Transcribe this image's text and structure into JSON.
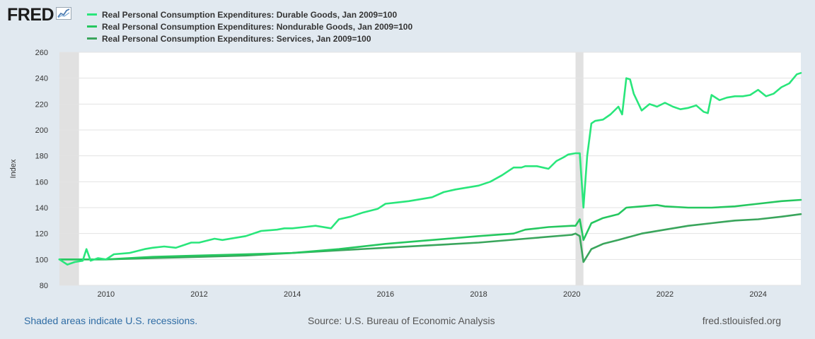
{
  "header": {
    "logo_text": "FRED",
    "logo_icon": "line-chart-icon"
  },
  "footer": {
    "recession_note": "Shaded areas indicate U.S. recessions.",
    "source": "Source: U.S. Bureau of Economic Analysis",
    "website": "fred.stlouisfed.org"
  },
  "chart_data": {
    "type": "line",
    "title": "",
    "xlabel": "",
    "ylabel": "Index",
    "ylim": [
      80,
      260
    ],
    "yticks": [
      80,
      100,
      120,
      140,
      160,
      180,
      200,
      220,
      240,
      260
    ],
    "xlim": [
      2009.0,
      2024.917
    ],
    "xticks": [
      2010,
      2012,
      2014,
      2016,
      2018,
      2020,
      2022,
      2024
    ],
    "grid": "horizontal",
    "recessions": [
      [
        2009.0,
        2009.42
      ],
      [
        2020.08,
        2020.25
      ]
    ],
    "recession_color": "#e1e1e1",
    "series": [
      {
        "name": "Real Personal Consumption Expenditures: Durable Goods, Jan 2009=100",
        "color": "#29e67b",
        "x": [
          2009.0,
          2009.17,
          2009.33,
          2009.5,
          2009.58,
          2009.67,
          2009.83,
          2010.0,
          2010.17,
          2010.5,
          2010.83,
          2011.0,
          2011.25,
          2011.5,
          2011.83,
          2012.0,
          2012.33,
          2012.5,
          2012.83,
          2013.0,
          2013.33,
          2013.67,
          2013.83,
          2014.0,
          2014.25,
          2014.5,
          2014.83,
          2015.0,
          2015.25,
          2015.5,
          2015.83,
          2016.0,
          2016.25,
          2016.5,
          2016.83,
          2017.0,
          2017.25,
          2017.5,
          2017.83,
          2018.0,
          2018.25,
          2018.5,
          2018.75,
          2018.92,
          2019.0,
          2019.25,
          2019.5,
          2019.67,
          2019.83,
          2019.92,
          2020.08,
          2020.17,
          2020.25,
          2020.33,
          2020.42,
          2020.5,
          2020.67,
          2020.83,
          2021.0,
          2021.08,
          2021.17,
          2021.25,
          2021.33,
          2021.5,
          2021.67,
          2021.83,
          2022.0,
          2022.17,
          2022.33,
          2022.5,
          2022.67,
          2022.83,
          2022.92,
          2023.0,
          2023.17,
          2023.33,
          2023.5,
          2023.67,
          2023.83,
          2024.0,
          2024.17,
          2024.33,
          2024.5,
          2024.67,
          2024.83,
          2024.917
        ],
        "values": [
          100,
          96,
          98,
          99,
          108,
          99,
          101,
          100,
          104,
          105,
          108,
          109,
          110,
          109,
          113,
          113,
          116,
          115,
          117,
          118,
          122,
          123,
          124,
          124,
          125,
          126,
          124,
          131,
          133,
          136,
          139,
          143,
          144,
          145,
          147,
          148,
          152,
          154,
          156,
          157,
          160,
          165,
          171,
          171,
          172,
          172,
          170,
          176,
          179,
          181,
          182,
          182,
          140,
          180,
          205,
          207,
          208,
          212,
          218,
          212,
          240,
          239,
          228,
          215,
          220,
          218,
          221,
          218,
          216,
          217,
          219,
          214,
          213,
          227,
          223,
          225,
          226,
          226,
          227,
          231,
          226,
          228,
          233,
          236,
          243,
          244
        ]
      },
      {
        "name": "Real Personal Consumption Expenditures: Nondurable Goods, Jan 2009=100",
        "color": "#25c75f",
        "x": [
          2009.0,
          2010.0,
          2011.0,
          2012.0,
          2013.0,
          2014.0,
          2015.0,
          2016.0,
          2017.0,
          2018.0,
          2018.75,
          2019.0,
          2019.5,
          2020.0,
          2020.08,
          2020.17,
          2020.25,
          2020.42,
          2020.67,
          2021.0,
          2021.17,
          2021.5,
          2021.83,
          2022.0,
          2022.5,
          2022.83,
          2023.0,
          2023.5,
          2024.0,
          2024.5,
          2024.917
        ],
        "values": [
          100,
          100,
          102,
          103,
          104,
          105,
          108,
          112,
          115,
          118,
          120,
          123,
          125,
          126,
          126,
          131,
          115,
          128,
          132,
          135,
          140,
          141,
          142,
          141,
          140,
          140,
          140,
          141,
          143,
          145,
          146
        ]
      },
      {
        "name": "Real Personal Consumption Expenditures: Services, Jan 2009=100",
        "color": "#3aa55c",
        "x": [
          2009.0,
          2010.0,
          2011.0,
          2012.0,
          2013.0,
          2014.0,
          2015.0,
          2016.0,
          2017.0,
          2018.0,
          2019.0,
          2020.0,
          2020.08,
          2020.17,
          2020.25,
          2020.42,
          2020.67,
          2021.0,
          2021.5,
          2022.0,
          2022.5,
          2023.0,
          2023.5,
          2024.0,
          2024.5,
          2024.917
        ],
        "values": [
          100,
          100,
          101,
          102,
          103,
          105,
          107,
          109,
          111,
          113,
          116,
          119,
          120,
          118,
          98,
          108,
          112,
          115,
          120,
          123,
          126,
          128,
          130,
          131,
          133,
          135
        ]
      }
    ]
  }
}
